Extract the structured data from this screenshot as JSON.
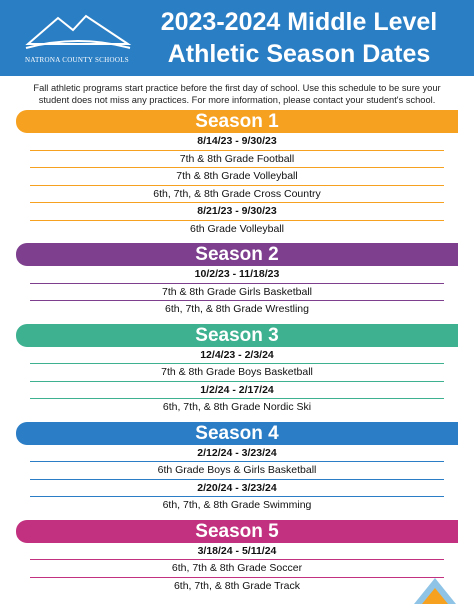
{
  "header": {
    "logo_text": "NATRONA COUNTY SCHOOLS",
    "title_lines": [
      "2023-2024 Middle Level",
      "Athletic Season Dates"
    ]
  },
  "intro": "Fall athletic programs start practice before the first day of school. Use this schedule to be sure your student does not miss any practices. For more information, please contact your student's school.",
  "seasons": [
    {
      "name": "Season 1",
      "color": "#f6a11f",
      "groups": [
        {
          "dates": "8/14/23 - 9/30/23",
          "sports": [
            "7th & 8th Grade Football",
            "7th & 8th Grade Volleyball",
            "6th, 7th, & 8th Grade Cross Country"
          ]
        },
        {
          "dates": "8/21/23 - 9/30/23",
          "sports": [
            "6th Grade Volleyball"
          ]
        }
      ]
    },
    {
      "name": "Season 2",
      "color": "#7d3f8e",
      "groups": [
        {
          "dates": "10/2/23 - 11/18/23",
          "sports": [
            "7th & 8th Grade Girls Basketball",
            "6th, 7th, & 8th Grade Wrestling"
          ]
        }
      ]
    },
    {
      "name": "Season 3",
      "color": "#3eb191",
      "groups": [
        {
          "dates": "12/4/23 - 2/3/24",
          "sports": [
            "7th & 8th Grade Boys Basketball"
          ]
        },
        {
          "dates": "1/2/24 - 2/17/24",
          "sports": [
            "6th, 7th, & 8th Grade Nordic Ski"
          ]
        }
      ]
    },
    {
      "name": "Season 4",
      "color": "#2b7dc5",
      "groups": [
        {
          "dates": "2/12/24 - 3/23/24",
          "sports": [
            "6th Grade Boys & Girls Basketball"
          ]
        },
        {
          "dates": "2/20/24 - 3/23/24",
          "sports": [
            "6th, 7th, & 8th Grade Swimming"
          ]
        }
      ]
    },
    {
      "name": "Season 5",
      "color": "#c2317f",
      "groups": [
        {
          "dates": "3/18/24 - 5/11/24",
          "sports": [
            "6th, 7th & 8th Grade Soccer",
            "6th, 7th, & 8th Grade Track"
          ]
        }
      ]
    }
  ]
}
